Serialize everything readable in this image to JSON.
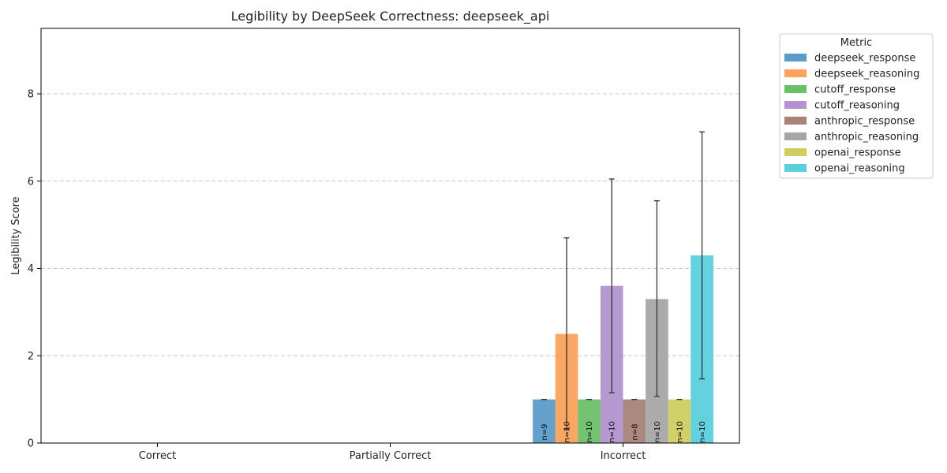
{
  "chart_data": {
    "type": "bar",
    "title": "Legibility by DeepSeek Correctness: deepseek_api",
    "xlabel": "",
    "ylabel": "Legibility Score",
    "categories": [
      "Correct",
      "Partially Correct",
      "Incorrect"
    ],
    "ylim": [
      0,
      9.5
    ],
    "yticks": [
      0,
      2,
      4,
      6,
      8
    ],
    "grid": "y-dashed",
    "legend": {
      "title": "Metric",
      "placement": "outside-top-right"
    },
    "series": [
      {
        "name": "deepseek_response",
        "color": "#5b9bc9",
        "values": [
          0,
          0,
          1.0
        ],
        "err_low": [
          null,
          null,
          1.0
        ],
        "err_high": [
          null,
          null,
          1.0
        ],
        "n_labels": [
          "",
          "",
          "n=9"
        ]
      },
      {
        "name": "deepseek_reasoning",
        "color": "#fba25c",
        "values": [
          0,
          0,
          2.5
        ],
        "err_low": [
          null,
          null,
          0.3
        ],
        "err_high": [
          null,
          null,
          4.7
        ],
        "n_labels": [
          "",
          "",
          "n=10"
        ]
      },
      {
        "name": "cutoff_response",
        "color": "#6abf69",
        "values": [
          0,
          0,
          1.0
        ],
        "err_low": [
          null,
          null,
          1.0
        ],
        "err_high": [
          null,
          null,
          1.0
        ],
        "n_labels": [
          "",
          "",
          "n=10"
        ]
      },
      {
        "name": "cutoff_reasoning",
        "color": "#b393cf",
        "values": [
          0,
          0,
          3.6
        ],
        "err_low": [
          null,
          null,
          1.15
        ],
        "err_high": [
          null,
          null,
          6.05
        ],
        "n_labels": [
          "",
          "",
          "n=10"
        ]
      },
      {
        "name": "anthropic_response",
        "color": "#a9827a",
        "values": [
          0,
          0,
          1.0
        ],
        "err_low": [
          null,
          null,
          1.0
        ],
        "err_high": [
          null,
          null,
          1.0
        ],
        "n_labels": [
          "",
          "",
          "n=8"
        ]
      },
      {
        "name": "anthropic_reasoning",
        "color": "#a6a6a6",
        "values": [
          0,
          0,
          3.3
        ],
        "err_low": [
          null,
          null,
          1.07
        ],
        "err_high": [
          null,
          null,
          5.55
        ],
        "n_labels": [
          "",
          "",
          "n=10"
        ]
      },
      {
        "name": "openai_response",
        "color": "#d0cd61",
        "values": [
          0,
          0,
          1.0
        ],
        "err_low": [
          null,
          null,
          1.0
        ],
        "err_high": [
          null,
          null,
          1.0
        ],
        "n_labels": [
          "",
          "",
          "n=10"
        ]
      },
      {
        "name": "openai_reasoning",
        "color": "#5bcfdc",
        "values": [
          0,
          0,
          4.3
        ],
        "err_low": [
          null,
          null,
          1.47
        ],
        "err_high": [
          null,
          null,
          7.13
        ],
        "n_labels": [
          "",
          "",
          "n=10"
        ]
      }
    ]
  }
}
